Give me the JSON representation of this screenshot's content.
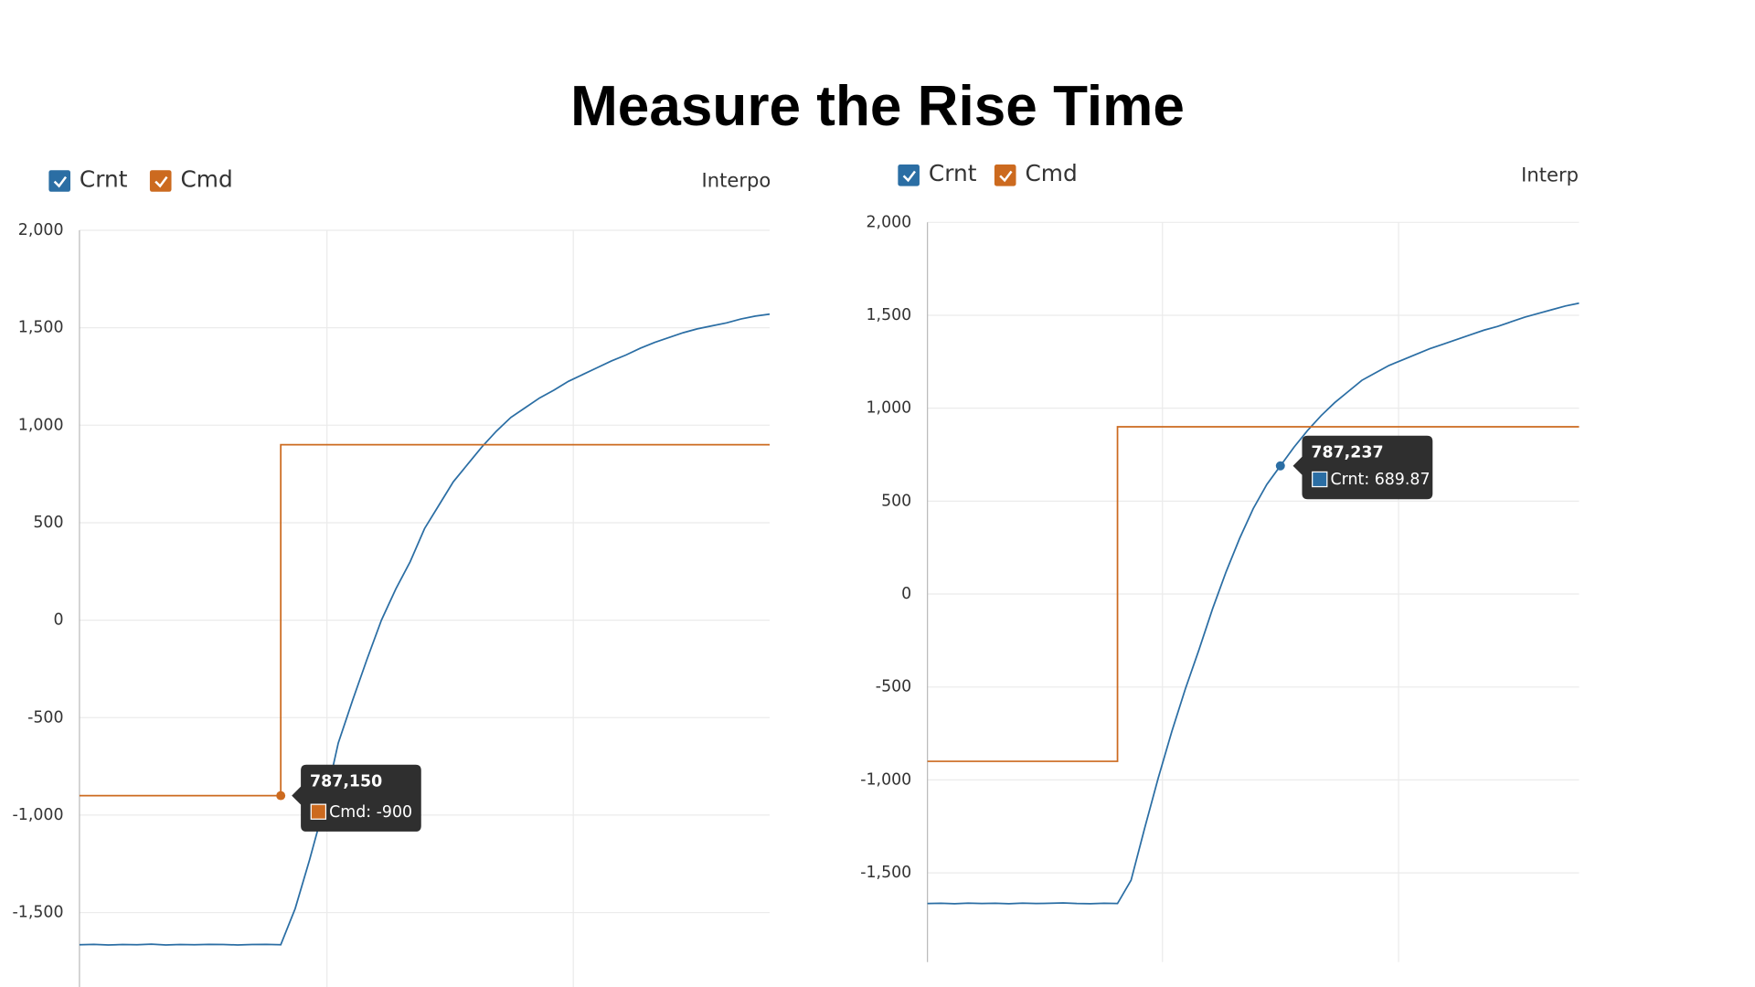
{
  "title": "Measure the Rise Time",
  "chart_data": [
    {
      "type": "line",
      "interpolation_label": "Interpo",
      "ylim": [
        -1940,
        2000
      ],
      "yticks": [
        {
          "value": -1500,
          "label": "-1,500"
        },
        {
          "value": -1000,
          "label": "-1,000"
        },
        -500,
        0,
        500,
        {
          "value": 1000,
          "label": "1,000"
        },
        {
          "value": 1500,
          "label": "1,500"
        },
        {
          "value": 2000,
          "label": "2,000"
        }
      ],
      "grid": true,
      "series": [
        {
          "name": "Crnt",
          "color": "#2b6ea4",
          "values": [
            -1665,
            -1663,
            -1666,
            -1664,
            -1665,
            -1662,
            -1666,
            -1664,
            -1665,
            -1663,
            -1664,
            -1666,
            -1664,
            -1663,
            -1665,
            -1480,
            -1230,
            -960,
            -630,
            -410,
            -200,
            0,
            160,
            300,
            470,
            590,
            710,
            800,
            890,
            970,
            1040,
            1090,
            1140,
            1180,
            1225,
            1260,
            1295,
            1330,
            1360,
            1395,
            1425,
            1450,
            1475,
            1495,
            1510,
            1525,
            1545,
            1560,
            1570
          ]
        },
        {
          "name": "Cmd",
          "color": "#cc6a1f",
          "step": true,
          "values": [
            -900,
            -900,
            -900,
            -900,
            -900,
            -900,
            -900,
            -900,
            -900,
            -900,
            -900,
            -900,
            -900,
            -900,
            -900,
            900,
            900,
            900,
            900,
            900,
            900,
            900,
            900,
            900,
            900,
            900,
            900,
            900,
            900,
            900,
            900,
            900,
            900,
            900,
            900,
            900,
            900,
            900,
            900,
            900,
            900,
            900,
            900,
            900,
            900,
            900,
            900,
            900,
            900
          ]
        }
      ],
      "tooltip": {
        "title": "787,150",
        "label": "Cmd: -900",
        "value": -900,
        "color": "#cc6a1f"
      }
    },
    {
      "type": "line",
      "interpolation_label": "Interpo",
      "ylim": [
        -1980,
        2000
      ],
      "yticks": [
        {
          "value": -1500,
          "label": "-1,500"
        },
        {
          "value": -1000,
          "label": "-1,000"
        },
        -500,
        0,
        500,
        {
          "value": 1000,
          "label": "1,000"
        },
        {
          "value": 1500,
          "label": "1,500"
        },
        {
          "value": 2000,
          "label": "2,000"
        }
      ],
      "grid": true,
      "series": [
        {
          "name": "Crnt",
          "color": "#2b6ea4",
          "values": [
            -1665,
            -1664,
            -1666,
            -1663,
            -1665,
            -1664,
            -1666,
            -1663,
            -1665,
            -1664,
            -1662,
            -1665,
            -1666,
            -1664,
            -1665,
            -1540,
            -1260,
            -990,
            -740,
            -510,
            -300,
            -80,
            120,
            300,
            460,
            590,
            690,
            790,
            880,
            960,
            1030,
            1090,
            1150,
            1190,
            1230,
            1260,
            1290,
            1320,
            1345,
            1370,
            1395,
            1420,
            1440,
            1465,
            1490,
            1510,
            1530,
            1550,
            1565
          ]
        },
        {
          "name": "Cmd",
          "color": "#cc6a1f",
          "step": true,
          "values": [
            -900,
            -900,
            -900,
            -900,
            -900,
            -900,
            -900,
            -900,
            -900,
            -900,
            -900,
            -900,
            -900,
            -900,
            -900,
            900,
            900,
            900,
            900,
            900,
            900,
            900,
            900,
            900,
            900,
            900,
            900,
            900,
            900,
            900,
            900,
            900,
            900,
            900,
            900,
            900,
            900,
            900,
            900,
            900,
            900,
            900,
            900,
            900,
            900,
            900,
            900,
            900,
            900
          ]
        }
      ],
      "tooltip": {
        "title": "787,237",
        "label": "Crnt: 689.87",
        "value": 689.87,
        "color": "#2b6ea4"
      }
    }
  ]
}
